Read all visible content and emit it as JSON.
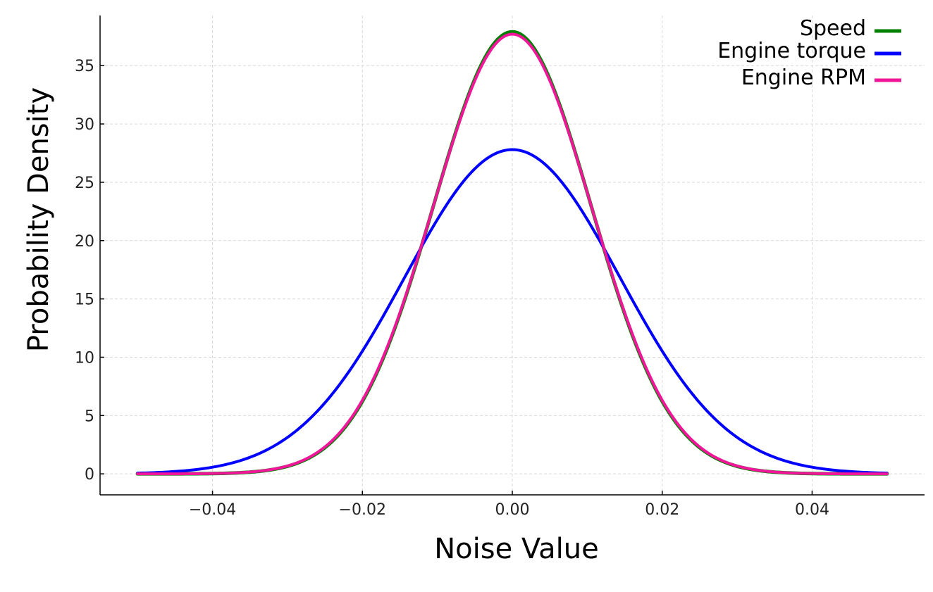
{
  "chart_data": {
    "type": "line",
    "title": "",
    "xlabel": "Noise Value",
    "ylabel": "Probability Density",
    "xlim": [
      -0.055,
      0.055
    ],
    "ylim": [
      -1.8,
      39.3
    ],
    "x_range": [
      -0.05,
      0.05
    ],
    "x_ticks": [
      -0.04,
      -0.02,
      0.0,
      0.02,
      0.04
    ],
    "x_tick_labels": [
      "−0.04",
      "−0.02",
      "0.00",
      "0.02",
      "0.04"
    ],
    "y_ticks": [
      0,
      5,
      10,
      15,
      20,
      25,
      30,
      35
    ],
    "y_tick_labels": [
      "0",
      "5",
      "10",
      "15",
      "20",
      "25",
      "30",
      "35"
    ],
    "grid": true,
    "legend_position": "top-right",
    "series": [
      {
        "name": "Speed",
        "color": "#008000",
        "distribution": "normal",
        "mean": 0.0,
        "std": 0.01052,
        "peak": 37.9
      },
      {
        "name": "Engine torque",
        "color": "#0000ff",
        "distribution": "normal",
        "mean": 0.0,
        "std": 0.01435,
        "peak": 27.8
      },
      {
        "name": "Engine RPM",
        "color": "#f0169a",
        "distribution": "normal",
        "mean": 0.0,
        "std": 0.01058,
        "peak": 37.7
      }
    ]
  }
}
